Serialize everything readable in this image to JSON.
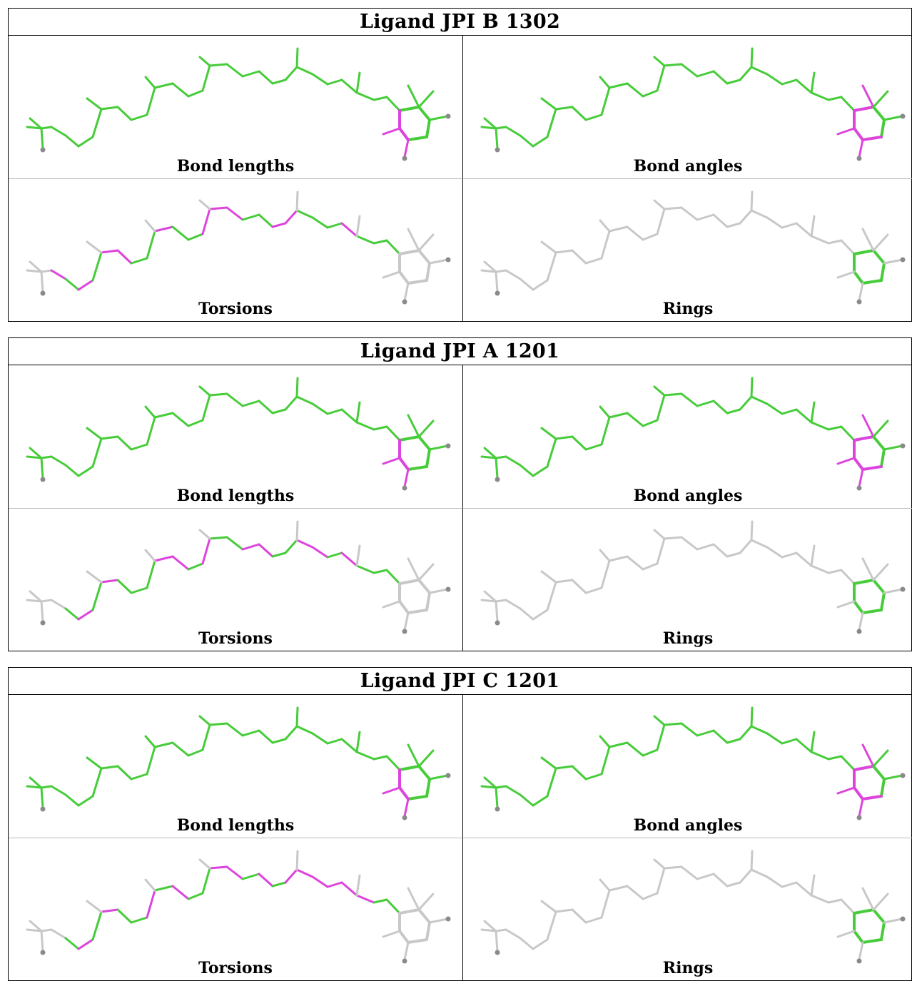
{
  "colors": {
    "ok": "#47cc3a",
    "outlier": "#dd44dd",
    "neutral": "#c8c8c8",
    "oxygen": "#8a8a8a"
  },
  "panel_labels": {
    "bond_lengths": "Bond lengths",
    "bond_angles": "Bond angles",
    "torsions": "Torsions",
    "rings": "Rings"
  },
  "ligands": [
    {
      "title": "Ligand JPI B 1302"
    },
    {
      "title": "Ligand JPI A 1201"
    },
    {
      "title": "Ligand JPI C 1201"
    }
  ]
}
